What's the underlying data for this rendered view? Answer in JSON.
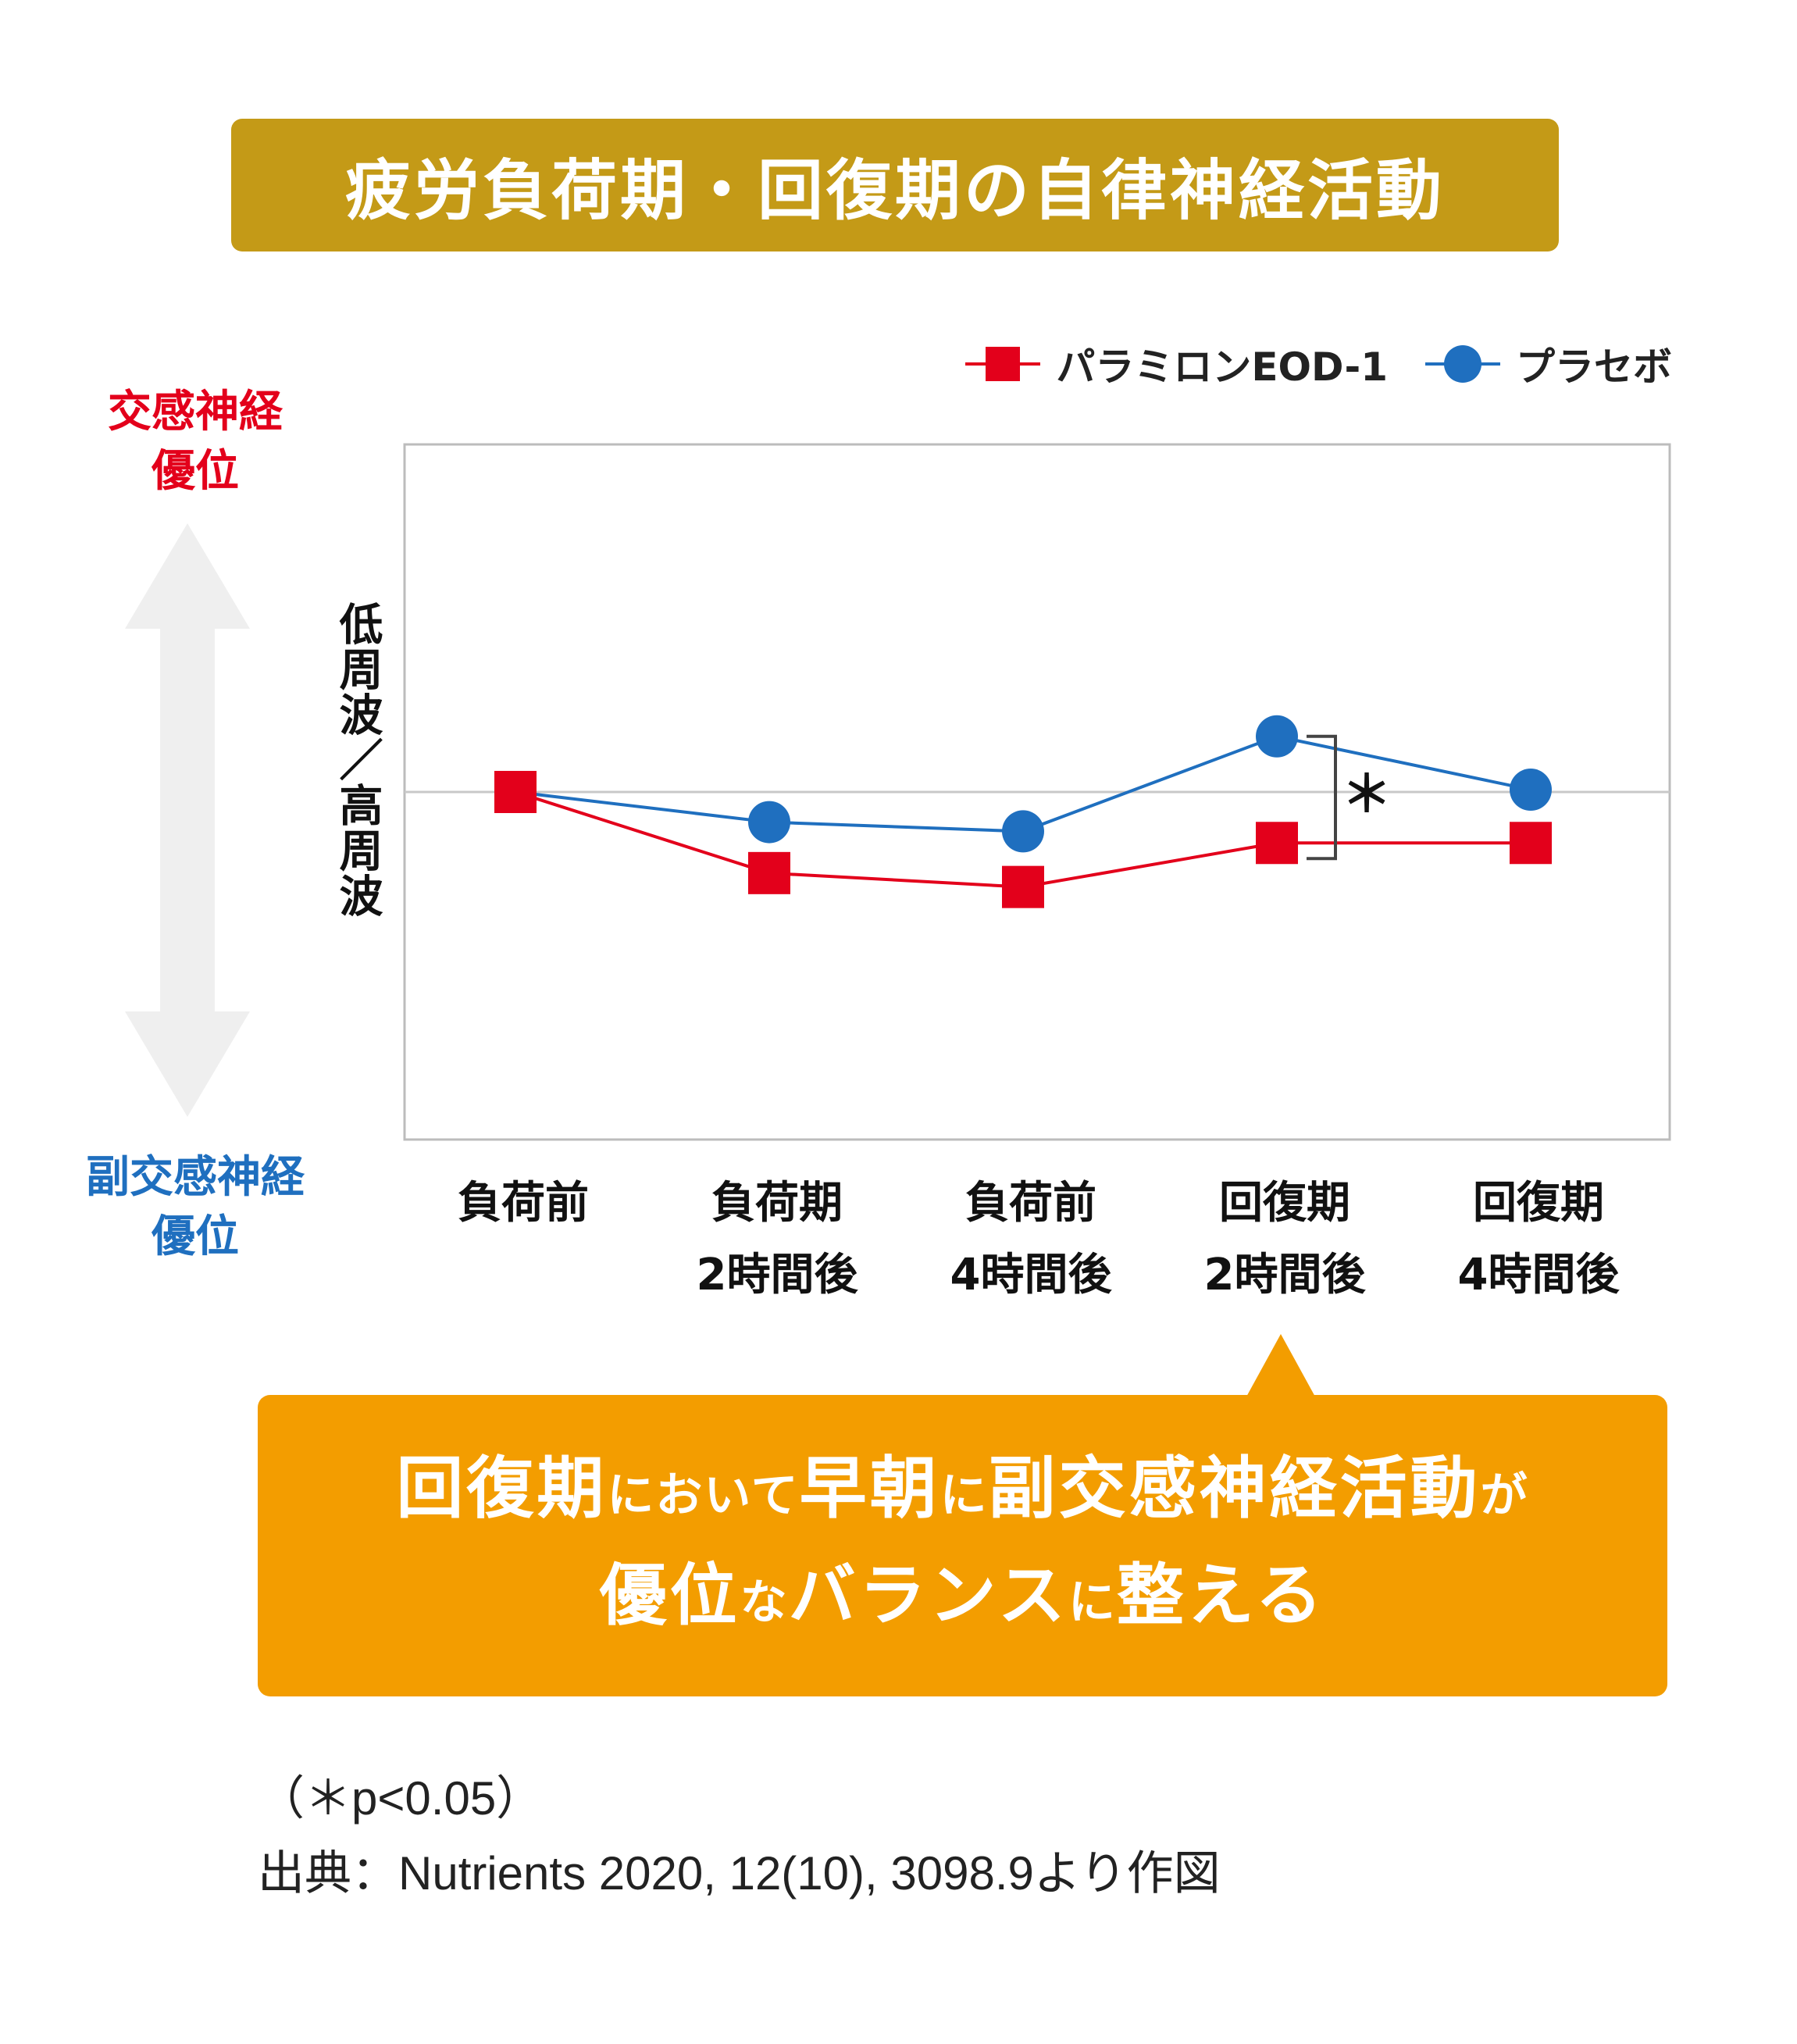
{
  "title": "疲労負荷期・回復期の自律神経活動",
  "axis": {
    "top_label_line1": "交感神経",
    "top_label_line2": "優位",
    "bottom_label_line1": "副交感神経",
    "bottom_label_line2": "優位"
  },
  "colors": {
    "title_bg": "#c49a17",
    "callout_bg": "#f39d00",
    "red": "#e3001b",
    "blue": "#1f6fbf",
    "arrow": "#efefef"
  },
  "chart_data": {
    "type": "line",
    "ylabel": "低周波／高周波",
    "ylim": [
      -1.5,
      1.5
    ],
    "baseline": 0,
    "categories": [
      {
        "line1": "負荷前",
        "line2": ""
      },
      {
        "line1": "負荷期",
        "line2": "2時間後"
      },
      {
        "line1": "負荷前",
        "line2": "4時間後"
      },
      {
        "line1": "回復期",
        "line2": "2時間後"
      },
      {
        "line1": "回復期",
        "line2": "4時間後"
      }
    ],
    "series": [
      {
        "name": "パラミロンEOD-1",
        "marker": "square",
        "color": "#e3001b",
        "values": [
          0.0,
          -0.35,
          -0.41,
          -0.22,
          -0.22
        ]
      },
      {
        "name": "プラセボ",
        "marker": "circle",
        "color": "#1f6fbf",
        "values": [
          0.0,
          -0.13,
          -0.17,
          0.24,
          0.01
        ]
      }
    ],
    "significance": {
      "category_index": 3,
      "label": "＊"
    }
  },
  "callout": {
    "line1": [
      {
        "text": "回復期",
        "small": false
      },
      {
        "text": "において",
        "small": true
      },
      {
        "text": "早朝",
        "small": false
      },
      {
        "text": "に",
        "small": true
      },
      {
        "text": "副交感神経活動",
        "small": false
      },
      {
        "text": "が",
        "small": true
      }
    ],
    "line2": [
      {
        "text": "優位",
        "small": false
      },
      {
        "text": "な",
        "small": true
      },
      {
        "text": "バランス",
        "small": false
      },
      {
        "text": "に",
        "small": true
      },
      {
        "text": "整える",
        "small": false
      }
    ]
  },
  "notes": {
    "pvalue": "（＊p<0.05）",
    "source": "出典：Nutrients 2020, 12(10), 3098.9より作図"
  }
}
